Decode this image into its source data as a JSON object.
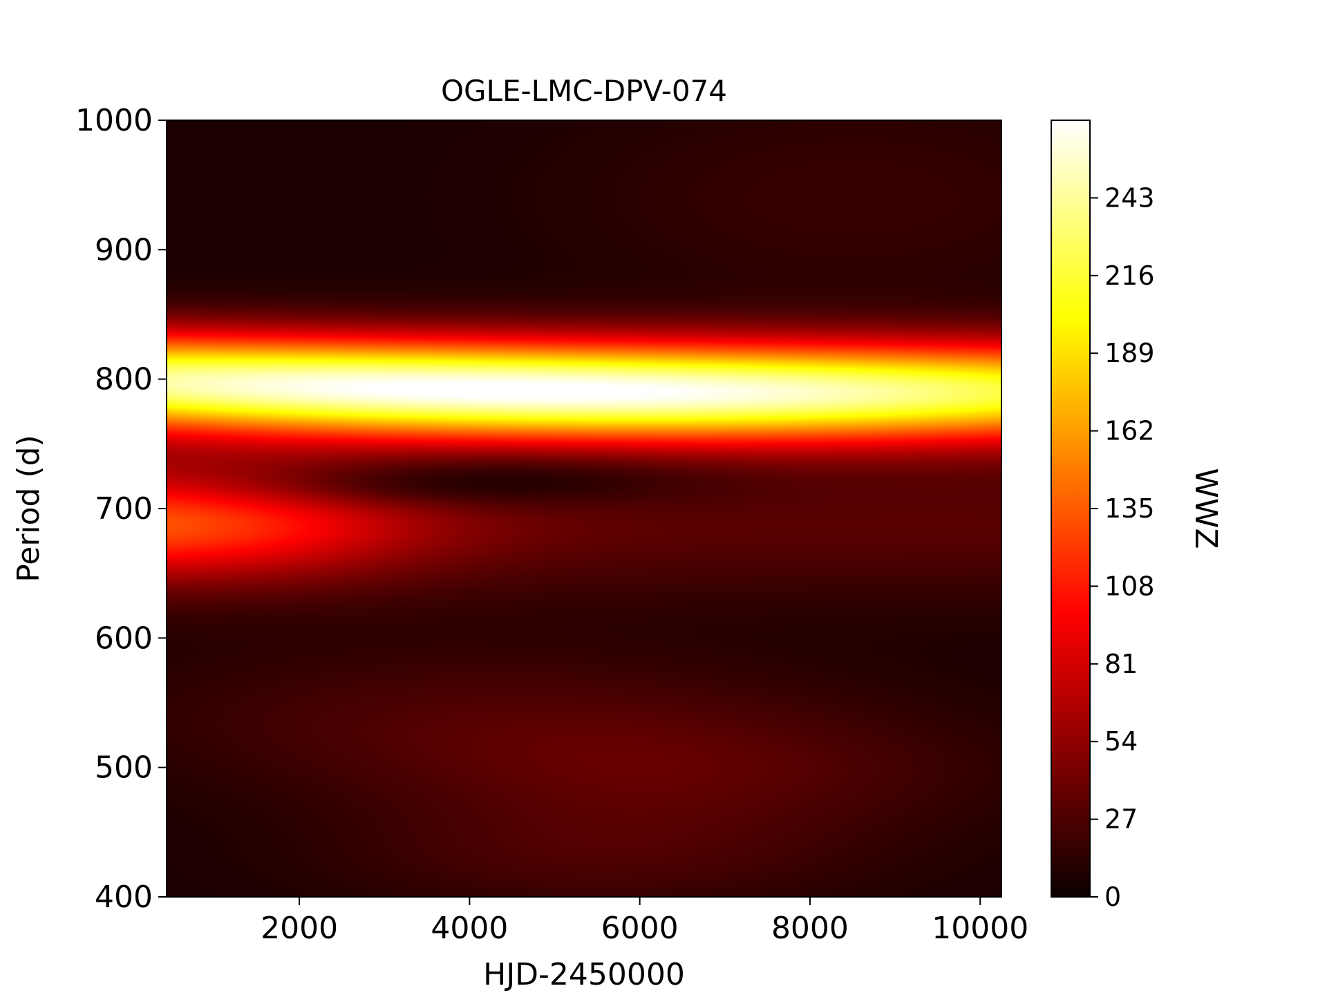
{
  "chart_data": {
    "type": "heatmap",
    "title": "OGLE-LMC-DPV-074",
    "xlabel": "HJD-2450000",
    "ylabel": "Period (d)",
    "xlim": [
      440,
      10250
    ],
    "ylim": [
      400,
      1000
    ],
    "xticks": [
      2000,
      4000,
      6000,
      8000,
      10000
    ],
    "yticks": [
      400,
      500,
      600,
      700,
      800,
      900,
      1000
    ],
    "colorbar": {
      "label": "WWZ",
      "colormap": "hot",
      "range": [
        0,
        270
      ],
      "ticks": [
        0,
        27,
        54,
        81,
        108,
        135,
        162,
        189,
        216,
        243
      ]
    },
    "features": [
      {
        "period_center": 785,
        "period_width": 28,
        "time_start": 440,
        "time_end": 10250,
        "peak_wwz": 265,
        "peak_at_hjd": 4500
      },
      {
        "period_center": 690,
        "period_width": 28,
        "time_start": 440,
        "time_end": 3500,
        "peak_wwz": 110
      },
      {
        "period_center": 720,
        "period_width": 12,
        "time_start": 2500,
        "time_end": 6500,
        "min_wwz": 3
      }
    ]
  }
}
